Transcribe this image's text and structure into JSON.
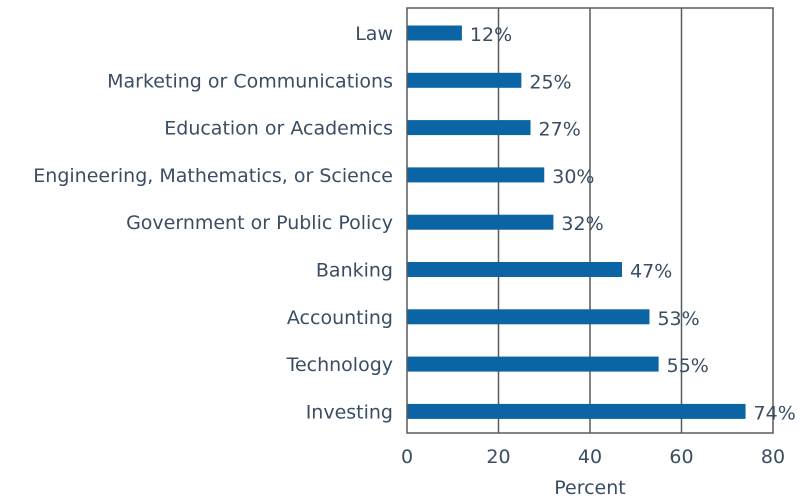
{
  "chart_data": {
    "type": "bar",
    "orientation": "horizontal",
    "categories": [
      "Law",
      "Marketing or Communications",
      "Education or Academics",
      "Engineering, Mathematics, or Science",
      "Government or Public Policy",
      "Banking",
      "Accounting",
      "Technology",
      "Investing"
    ],
    "values": [
      12,
      25,
      27,
      30,
      32,
      47,
      53,
      55,
      74
    ],
    "value_labels": [
      "12%",
      "25%",
      "27%",
      "30%",
      "32%",
      "47%",
      "53%",
      "55%",
      "74%"
    ],
    "xlabel": "Percent",
    "xlim": [
      0,
      80
    ],
    "xticks": [
      0,
      20,
      40,
      60,
      80
    ],
    "grid": "vertical",
    "colors": {
      "bar": "#0b64a3",
      "grid": "#5a5a5a",
      "text": "#3a4d63"
    }
  }
}
